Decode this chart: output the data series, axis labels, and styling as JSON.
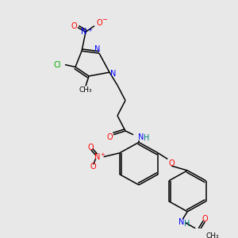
{
  "background_color": "#e8e8e8",
  "colors": {
    "N": "#0000ff",
    "O": "#ff0000",
    "Cl": "#00aa00",
    "C": "#000000",
    "H": "#008080",
    "bond": "#000000"
  },
  "figsize": [
    3.0,
    3.0
  ],
  "dpi": 100
}
